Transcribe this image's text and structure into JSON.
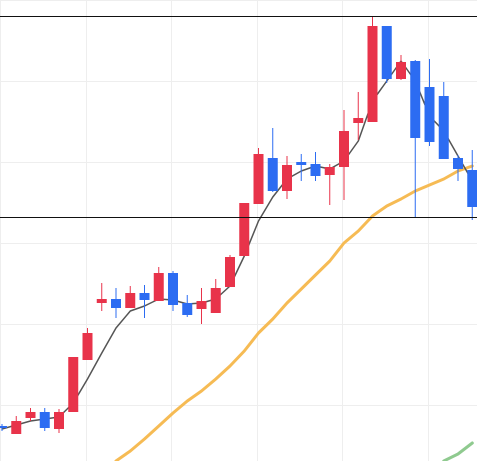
{
  "chart_data": {
    "type": "candlestick",
    "ylim": [
      0,
      461
    ],
    "grid": true,
    "colors": {
      "up": "#e8334a",
      "down": "#2c6cf2",
      "ma_short": "#555555",
      "ma_mid": "#f6bb54",
      "ma_long": "#8fca8f",
      "grid": "#eeeeee",
      "reference_line": "#111111"
    },
    "reference_lines": [
      445,
      244
    ],
    "candles": [
      {
        "i": 0,
        "o": 35,
        "c": 34,
        "h": 37,
        "l": 30
      },
      {
        "i": 1,
        "o": 27,
        "c": 40,
        "h": 45,
        "l": 27
      },
      {
        "i": 2,
        "o": 43,
        "c": 49,
        "h": 53,
        "l": 40
      },
      {
        "i": 3,
        "o": 49,
        "c": 33,
        "h": 53,
        "l": 30
      },
      {
        "i": 4,
        "o": 32,
        "c": 49,
        "h": 52,
        "l": 28
      },
      {
        "i": 5,
        "o": 49,
        "c": 104,
        "h": 104,
        "l": 49
      },
      {
        "i": 6,
        "o": 101,
        "c": 128,
        "h": 133,
        "l": 101
      },
      {
        "i": 7,
        "o": 158,
        "c": 162,
        "h": 178,
        "l": 150
      },
      {
        "i": 8,
        "o": 162,
        "c": 153,
        "h": 173,
        "l": 143
      },
      {
        "i": 9,
        "o": 153,
        "c": 168,
        "h": 175,
        "l": 153
      },
      {
        "i": 10,
        "o": 168,
        "c": 161,
        "h": 176,
        "l": 143
      },
      {
        "i": 11,
        "o": 160,
        "c": 188,
        "h": 194,
        "l": 160
      },
      {
        "i": 12,
        "o": 188,
        "c": 156,
        "h": 190,
        "l": 150
      },
      {
        "i": 13,
        "o": 158,
        "c": 146,
        "h": 166,
        "l": 144
      },
      {
        "i": 14,
        "o": 152,
        "c": 160,
        "h": 173,
        "l": 137
      },
      {
        "i": 15,
        "o": 148,
        "c": 173,
        "h": 182,
        "l": 148
      },
      {
        "i": 16,
        "o": 174,
        "c": 204,
        "h": 206,
        "l": 174
      },
      {
        "i": 17,
        "o": 205,
        "c": 258,
        "h": 258,
        "l": 205
      },
      {
        "i": 18,
        "o": 257,
        "c": 307,
        "h": 313,
        "l": 257
      },
      {
        "i": 19,
        "o": 303,
        "c": 270,
        "h": 333,
        "l": 269
      },
      {
        "i": 20,
        "o": 270,
        "c": 296,
        "h": 305,
        "l": 262
      },
      {
        "i": 21,
        "o": 299,
        "c": 296,
        "h": 307,
        "l": 280
      },
      {
        "i": 22,
        "o": 297,
        "c": 285,
        "h": 309,
        "l": 280
      },
      {
        "i": 23,
        "o": 286,
        "c": 294,
        "h": 297,
        "l": 256
      },
      {
        "i": 24,
        "o": 294,
        "c": 330,
        "h": 351,
        "l": 261
      },
      {
        "i": 25,
        "o": 338,
        "c": 343,
        "h": 369,
        "l": 321
      },
      {
        "i": 26,
        "o": 339,
        "c": 435,
        "h": 445,
        "l": 339
      },
      {
        "i": 27,
        "o": 435,
        "c": 382,
        "h": 435,
        "l": 378
      },
      {
        "i": 28,
        "o": 382,
        "c": 399,
        "h": 406,
        "l": 381
      },
      {
        "i": 29,
        "o": 400,
        "c": 323,
        "h": 401,
        "l": 244
      },
      {
        "i": 30,
        "o": 374,
        "c": 319,
        "h": 402,
        "l": 315
      },
      {
        "i": 31,
        "o": 365,
        "c": 302,
        "h": 379,
        "l": 302
      },
      {
        "i": 32,
        "o": 303,
        "c": 292,
        "h": 306,
        "l": 280
      },
      {
        "i": 33,
        "o": 291,
        "c": 254,
        "h": 311,
        "l": 241
      }
    ],
    "ma_short": [
      [
        0,
        32
      ],
      [
        1,
        36
      ],
      [
        2,
        40
      ],
      [
        3,
        42
      ],
      [
        4,
        44
      ],
      [
        5,
        58
      ],
      [
        6,
        82
      ],
      [
        7,
        108
      ],
      [
        8,
        133
      ],
      [
        9,
        150
      ],
      [
        10,
        155
      ],
      [
        11,
        162
      ],
      [
        12,
        161
      ],
      [
        13,
        157
      ],
      [
        14,
        158
      ],
      [
        15,
        162
      ],
      [
        16,
        175
      ],
      [
        17,
        205
      ],
      [
        18,
        240
      ],
      [
        19,
        264
      ],
      [
        20,
        282
      ],
      [
        21,
        290
      ],
      [
        22,
        295
      ],
      [
        23,
        292
      ],
      [
        24,
        300
      ],
      [
        25,
        320
      ],
      [
        26,
        360
      ],
      [
        27,
        380
      ],
      [
        28,
        400
      ],
      [
        29,
        380
      ],
      [
        30,
        345
      ],
      [
        31,
        330
      ],
      [
        32,
        305
      ],
      [
        33,
        280
      ]
    ],
    "ma_mid": [
      [
        8,
        0
      ],
      [
        9,
        10
      ],
      [
        10,
        22
      ],
      [
        11,
        35
      ],
      [
        12,
        48
      ],
      [
        13,
        60
      ],
      [
        14,
        70
      ],
      [
        15,
        82
      ],
      [
        16,
        95
      ],
      [
        17,
        110
      ],
      [
        18,
        128
      ],
      [
        19,
        142
      ],
      [
        20,
        158
      ],
      [
        21,
        172
      ],
      [
        22,
        186
      ],
      [
        23,
        200
      ],
      [
        24,
        218
      ],
      [
        25,
        230
      ],
      [
        26,
        245
      ],
      [
        27,
        255
      ],
      [
        28,
        262
      ],
      [
        29,
        270
      ],
      [
        30,
        276
      ],
      [
        31,
        282
      ],
      [
        32,
        290
      ],
      [
        33,
        295
      ]
    ],
    "ma_long": [
      [
        31,
        0
      ],
      [
        32,
        7
      ],
      [
        33,
        18
      ]
    ]
  }
}
